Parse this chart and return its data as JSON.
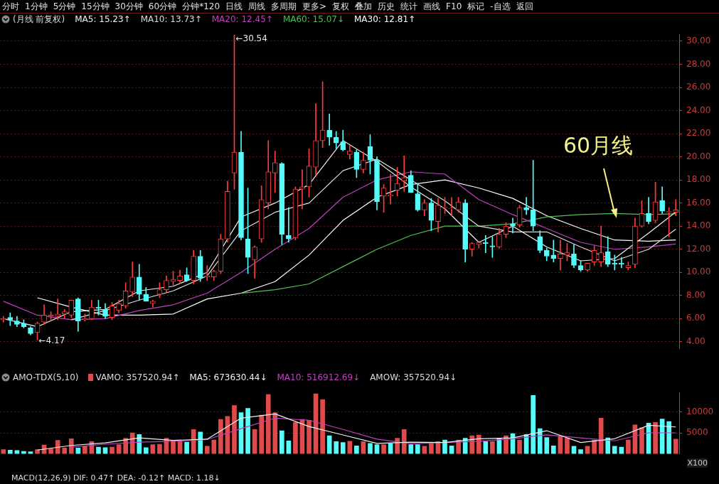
{
  "chart_data": [
    {
      "type": "other",
      "annotations": [
        "分时",
        "1分钟",
        "5分钟",
        "15分钟",
        "30分钟",
        "60分钟",
        "分钟*120",
        "日线",
        "周线",
        "多周期",
        "更多>",
        "复权",
        "叠加",
        "历史",
        "统计",
        "画线",
        "F10",
        "标记",
        "-自选",
        "返回"
      ]
    },
    {
      "type": "candlestick",
      "title": "(月线 前复权)",
      "categories": [
        null,
        null,
        null,
        null,
        null,
        null,
        null,
        null,
        null,
        null,
        null,
        null,
        null,
        null,
        null,
        null,
        null,
        null,
        null,
        null,
        null,
        null,
        null,
        null,
        null,
        null,
        null,
        null,
        null,
        null,
        null,
        null,
        null,
        null,
        null,
        null,
        null,
        null,
        null,
        null,
        null,
        null,
        null,
        null,
        null,
        null,
        null,
        null,
        null,
        null,
        null,
        null,
        null,
        null,
        null,
        null,
        null,
        null,
        null,
        null,
        null,
        null,
        null,
        null,
        null,
        null,
        null,
        null,
        null,
        null,
        null,
        null,
        null,
        null,
        null,
        null,
        null,
        null,
        null,
        null,
        null,
        null,
        null,
        null,
        null,
        null,
        null,
        null,
        null,
        null,
        null,
        null,
        null,
        null,
        null,
        null,
        null,
        null,
        null,
        null
      ],
      "ohlc": [
        [
          5.9,
          6.2,
          5.7,
          6.0
        ],
        [
          6.1,
          6.5,
          5.4,
          5.9
        ],
        [
          5.8,
          6.2,
          5.3,
          5.5
        ],
        [
          5.6,
          5.9,
          5.2,
          5.3
        ],
        [
          5.2,
          5.3,
          4.6,
          4.7
        ],
        [
          4.8,
          5.7,
          4.17,
          5.6
        ],
        [
          5.7,
          7.2,
          5.5,
          6.3
        ],
        [
          6.2,
          6.6,
          5.9,
          6.3
        ],
        [
          6.2,
          7.7,
          5.9,
          6.4
        ],
        [
          6.4,
          6.8,
          6.0,
          6.6
        ],
        [
          6.3,
          7.6,
          6.1,
          7.6
        ],
        [
          7.7,
          7.8,
          4.9,
          5.8
        ],
        [
          5.9,
          6.4,
          5.8,
          6.0
        ],
        [
          6.0,
          7.6,
          5.9,
          7.0
        ],
        [
          7.0,
          7.6,
          6.3,
          6.9
        ],
        [
          6.8,
          7.3,
          6.0,
          6.2
        ],
        [
          6.1,
          7.4,
          5.9,
          7.1
        ],
        [
          6.7,
          7.6,
          6.5,
          7.3
        ],
        [
          7.1,
          9.1,
          6.9,
          8.4
        ],
        [
          8.3,
          10.9,
          7.9,
          9.6
        ],
        [
          9.6,
          10.7,
          7.6,
          8.1
        ],
        [
          8.1,
          8.7,
          7.5,
          7.5
        ],
        [
          7.3,
          7.6,
          7.0,
          7.5
        ],
        [
          8.1,
          9.1,
          7.8,
          8.5
        ],
        [
          8.5,
          9.7,
          8.3,
          9.3
        ],
        [
          9.2,
          10.1,
          8.9,
          9.4
        ],
        [
          9.3,
          10.2,
          9.0,
          9.7
        ],
        [
          9.8,
          10.4,
          9.2,
          9.3
        ],
        [
          9.3,
          11.9,
          9.0,
          11.4
        ],
        [
          11.4,
          11.9,
          9.2,
          9.5
        ],
        [
          9.6,
          10.6,
          9.3,
          9.7
        ],
        [
          9.6,
          10.2,
          9.3,
          10.1
        ],
        [
          10.1,
          13.3,
          9.9,
          12.9
        ],
        [
          12.9,
          17.9,
          12.6,
          17.0
        ],
        [
          18.6,
          30.54,
          17.2,
          20.4
        ],
        [
          20.4,
          22.2,
          12.8,
          13.0
        ],
        [
          12.9,
          17.3,
          9.9,
          11.3
        ],
        [
          11.1,
          12.3,
          9.5,
          12.2
        ],
        [
          12.9,
          17.5,
          12.6,
          16.3
        ],
        [
          16.0,
          21.4,
          15.5,
          18.7
        ],
        [
          18.6,
          20.5,
          16.9,
          19.5
        ],
        [
          19.4,
          19.5,
          12.4,
          13.3
        ],
        [
          13.2,
          15.6,
          12.6,
          12.9
        ],
        [
          13.0,
          17.4,
          12.8,
          17.2
        ],
        [
          17.2,
          18.9,
          15.5,
          17.4
        ],
        [
          17.4,
          20.7,
          16.5,
          19.2
        ],
        [
          19.1,
          24.6,
          18.4,
          21.4
        ],
        [
          21.4,
          26.5,
          20.8,
          22.3
        ],
        [
          22.3,
          23.7,
          21.0,
          21.7
        ],
        [
          21.7,
          22.2,
          20.7,
          21.2
        ],
        [
          21.3,
          22.3,
          20.5,
          20.6
        ],
        [
          20.2,
          21.0,
          19.8,
          20.5
        ],
        [
          20.4,
          20.6,
          18.2,
          18.9
        ],
        [
          18.9,
          20.4,
          18.6,
          19.7
        ],
        [
          20.9,
          21.9,
          18.5,
          19.7
        ],
        [
          19.7,
          20.0,
          15.4,
          16.1
        ],
        [
          16.6,
          17.6,
          15.2,
          17.3
        ],
        [
          16.6,
          18.5,
          15.9,
          16.7
        ],
        [
          17.1,
          19.1,
          16.6,
          17.7
        ],
        [
          17.9,
          20.1,
          17.0,
          18.2
        ],
        [
          18.4,
          18.8,
          16.9,
          16.9
        ],
        [
          16.8,
          17.7,
          15.3,
          15.4
        ],
        [
          15.4,
          16.3,
          14.9,
          16.0
        ],
        [
          16.0,
          16.4,
          13.6,
          14.5
        ],
        [
          14.4,
          16.4,
          13.5,
          15.8
        ],
        [
          15.6,
          16.5,
          15.1,
          15.6
        ],
        [
          15.5,
          16.5,
          14.9,
          15.5
        ],
        [
          15.4,
          16.5,
          15.2,
          16.1
        ],
        [
          16.0,
          16.3,
          10.9,
          12.0
        ],
        [
          12.0,
          12.6,
          11.4,
          12.5
        ],
        [
          12.4,
          12.7,
          12.1,
          12.6
        ],
        [
          12.6,
          13.2,
          11.7,
          12.5
        ],
        [
          12.3,
          13.1,
          11.3,
          12.2
        ],
        [
          12.2,
          13.8,
          12.1,
          13.3
        ],
        [
          13.3,
          14.3,
          13.0,
          14.0
        ],
        [
          14.2,
          14.7,
          13.4,
          14.0
        ],
        [
          14.1,
          15.8,
          13.9,
          15.6
        ],
        [
          15.6,
          16.5,
          15.0,
          15.4
        ],
        [
          15.4,
          19.7,
          13.6,
          14.0
        ],
        [
          13.1,
          13.6,
          11.7,
          11.9
        ],
        [
          11.9,
          12.1,
          11.0,
          11.4
        ],
        [
          11.5,
          12.8,
          10.9,
          11.2
        ],
        [
          11.2,
          12.8,
          10.2,
          11.6
        ],
        [
          11.5,
          12.5,
          11.0,
          11.7
        ],
        [
          11.6,
          12.4,
          10.4,
          10.6
        ],
        [
          10.6,
          11.0,
          10.1,
          10.2
        ],
        [
          10.2,
          10.8,
          10.1,
          10.8
        ],
        [
          10.9,
          12.3,
          10.6,
          11.9
        ],
        [
          10.9,
          14.0,
          10.5,
          11.7
        ],
        [
          11.8,
          13.1,
          10.5,
          10.7
        ],
        [
          10.8,
          11.5,
          10.2,
          10.7
        ],
        [
          10.8,
          11.3,
          10.4,
          10.7
        ],
        [
          10.4,
          10.9,
          10.2,
          10.6
        ],
        [
          10.7,
          14.7,
          10.4,
          14.0
        ],
        [
          14.0,
          16.2,
          13.9,
          15.1
        ],
        [
          15.1,
          16.5,
          14.2,
          14.4
        ],
        [
          14.5,
          17.8,
          14.3,
          16.1
        ],
        [
          16.2,
          17.4,
          15.1,
          15.3
        ],
        [
          15.2,
          15.6,
          13.1,
          15.2
        ],
        [
          15.2,
          16.3,
          14.9,
          15.4
        ]
      ],
      "series": [
        {
          "type": "line",
          "name": "MA5: 15.23↑",
          "color": "#f0f0f0",
          "values": [
            6.0,
            null,
            null,
            null,
            null,
            5.3,
            null,
            null,
            null,
            null,
            6.6,
            null,
            null,
            null,
            null,
            6.8,
            null,
            null,
            null,
            null,
            8.4,
            null,
            null,
            null,
            null,
            8.8,
            null,
            null,
            null,
            null,
            10.0,
            null,
            null,
            null,
            null,
            14.8,
            null,
            null,
            null,
            null,
            16.0,
            null,
            null,
            null,
            null,
            17.6,
            null,
            null,
            null,
            null,
            21.4,
            null,
            null,
            null,
            null,
            19.6,
            null,
            null,
            null,
            null,
            17.4,
            null,
            null,
            null,
            null,
            15.5,
            null,
            null,
            null,
            null,
            12.6,
            null,
            null,
            null,
            null,
            14.0,
            null,
            null,
            null,
            null,
            12.2,
            null,
            null,
            null,
            null,
            11.0,
            null,
            null,
            null,
            null,
            11.2,
            null,
            null,
            null,
            null,
            13.4,
            null,
            null,
            null,
            15.23
          ]
        },
        {
          "type": "line",
          "name": "MA10: 13.73↑",
          "color": "#dcdcdc",
          "values": [
            null,
            null,
            null,
            null,
            null,
            null,
            null,
            null,
            null,
            null,
            5.9,
            null,
            null,
            null,
            null,
            6.7,
            null,
            null,
            null,
            null,
            7.6,
            null,
            null,
            null,
            null,
            8.4,
            null,
            null,
            null,
            null,
            9.7,
            null,
            null,
            null,
            null,
            13.6,
            null,
            null,
            null,
            null,
            15.2,
            null,
            null,
            null,
            null,
            16.0,
            null,
            null,
            null,
            null,
            18.8,
            null,
            null,
            null,
            null,
            19.8,
            null,
            null,
            null,
            null,
            18.0,
            null,
            null,
            null,
            null,
            16.2,
            null,
            null,
            null,
            null,
            14.0,
            null,
            null,
            null,
            null,
            13.5,
            null,
            null,
            null,
            null,
            13.5,
            null,
            null,
            null,
            null,
            12.2,
            null,
            null,
            null,
            null,
            11.0,
            null,
            null,
            null,
            null,
            12.0,
            null,
            null,
            null,
            13.73
          ]
        },
        {
          "type": "line",
          "name": "MA20: 12.45↑",
          "color": "#c040c0",
          "values": [
            7.5,
            null,
            null,
            null,
            null,
            6.3,
            null,
            null,
            null,
            null,
            5.9,
            null,
            null,
            null,
            null,
            6.0,
            null,
            null,
            null,
            null,
            6.7,
            null,
            null,
            null,
            null,
            7.2,
            null,
            null,
            null,
            null,
            8.2,
            null,
            null,
            null,
            null,
            10.0,
            null,
            null,
            null,
            null,
            12.0,
            null,
            null,
            null,
            null,
            13.8,
            null,
            null,
            null,
            null,
            16.5,
            null,
            null,
            null,
            null,
            18.0,
            null,
            null,
            null,
            null,
            18.7,
            null,
            null,
            null,
            null,
            18.5,
            null,
            null,
            null,
            null,
            16.3,
            null,
            null,
            null,
            null,
            15.0,
            null,
            null,
            null,
            null,
            13.8,
            null,
            null,
            null,
            null,
            12.6,
            null,
            null,
            null,
            null,
            12.0,
            null,
            null,
            null,
            null,
            12.2,
            null,
            null,
            null,
            12.45
          ]
        },
        {
          "type": "line",
          "name": "MA60: 15.07↓",
          "color": "#50c050",
          "values": [
            null,
            null,
            null,
            null,
            null,
            null,
            null,
            null,
            null,
            null,
            null,
            null,
            null,
            null,
            null,
            null,
            null,
            null,
            null,
            null,
            null,
            null,
            null,
            null,
            null,
            null,
            null,
            null,
            null,
            null,
            null,
            null,
            null,
            null,
            null,
            8.2,
            null,
            null,
            null,
            null,
            8.5,
            null,
            null,
            null,
            null,
            9.0,
            null,
            null,
            null,
            null,
            10.5,
            null,
            null,
            null,
            null,
            12.0,
            null,
            null,
            null,
            null,
            13.2,
            null,
            null,
            null,
            null,
            14.0,
            null,
            null,
            null,
            null,
            14.0,
            null,
            null,
            null,
            null,
            14.2,
            null,
            null,
            null,
            null,
            14.8,
            null,
            null,
            null,
            null,
            15.0,
            null,
            null,
            null,
            null,
            15.1,
            null,
            null,
            null,
            null,
            15.0,
            null,
            null,
            null,
            15.07
          ]
        },
        {
          "type": "line",
          "name": "MA30: 12.81↑",
          "color": "#ffffff",
          "values": [
            null,
            null,
            null,
            null,
            null,
            7.8,
            null,
            null,
            null,
            null,
            7.0,
            null,
            null,
            null,
            null,
            6.3,
            null,
            null,
            null,
            null,
            6.3,
            null,
            null,
            null,
            null,
            6.4,
            null,
            null,
            null,
            null,
            7.7,
            null,
            null,
            null,
            null,
            8.2,
            null,
            null,
            null,
            null,
            9.2,
            null,
            null,
            null,
            null,
            11.5,
            null,
            null,
            null,
            null,
            14.5,
            null,
            null,
            null,
            null,
            16.5,
            null,
            null,
            null,
            null,
            17.6,
            null,
            null,
            null,
            null,
            18.0,
            null,
            null,
            null,
            null,
            17.3,
            null,
            null,
            null,
            null,
            16.4,
            null,
            null,
            null,
            null,
            14.9,
            null,
            null,
            null,
            null,
            13.8,
            null,
            null,
            null,
            null,
            12.8,
            null,
            null,
            null,
            null,
            12.7,
            null,
            null,
            null,
            12.81
          ]
        }
      ],
      "ylim": [
        3.4,
        30.6
      ],
      "yticks": [
        {
          "value": 4,
          "label": "4.00"
        },
        {
          "value": 6,
          "label": "6.00"
        },
        {
          "value": 8,
          "label": "8.00"
        },
        {
          "value": 10,
          "label": "10.00"
        },
        {
          "value": 12,
          "label": "12.00"
        },
        {
          "value": 14,
          "label": "14.00"
        },
        {
          "value": 16,
          "label": "16.00"
        },
        {
          "value": 18,
          "label": "18.00"
        },
        {
          "value": 20,
          "label": "20.00"
        },
        {
          "value": 22,
          "label": "22.00"
        },
        {
          "value": 24,
          "label": "24.00"
        },
        {
          "value": 26,
          "label": "26.00"
        },
        {
          "value": 28,
          "label": "28.00"
        },
        {
          "value": 30,
          "label": "30.00"
        }
      ],
      "grid": "y",
      "legend": "top",
      "annotations": [
        "←30.54",
        "←4.17",
        "60月线"
      ]
    },
    {
      "type": "bar",
      "title": "AMO-TDX(5,10)",
      "ylabel": "X100",
      "categories": [
        null,
        null,
        null,
        null,
        null,
        null,
        null,
        null,
        null,
        null,
        null,
        null,
        null,
        null,
        null,
        null,
        null,
        null,
        null,
        null,
        null,
        null,
        null,
        null,
        null,
        null,
        null,
        null,
        null,
        null,
        null,
        null,
        null,
        null,
        null,
        null,
        null,
        null,
        null,
        null,
        null,
        null,
        null,
        null,
        null,
        null,
        null,
        null,
        null,
        null,
        null,
        null,
        null,
        null,
        null,
        null,
        null,
        null,
        null,
        null,
        null,
        null,
        null,
        null,
        null,
        null,
        null,
        null,
        null,
        null,
        null,
        null,
        null,
        null,
        null,
        null,
        null,
        null,
        null,
        null,
        null,
        null,
        null,
        null,
        null,
        null,
        null,
        null,
        null,
        null,
        null,
        null,
        null,
        null,
        null,
        null,
        null,
        null,
        null,
        null
      ],
      "series": [
        {
          "type": "bar",
          "name": "VAMO: 357520.94↑",
          "values": [
            1000,
            900,
            800,
            600,
            500,
            1000,
            2100,
            1200,
            3200,
            1400,
            3600,
            1400,
            1800,
            2900,
            1600,
            1500,
            1600,
            2200,
            3700,
            5000,
            4600,
            1500,
            2200,
            2300,
            3700,
            3200,
            3100,
            2800,
            5800,
            5200,
            1800,
            3300,
            8200,
            8900,
            11500,
            9800,
            10800,
            5800,
            9200,
            14100,
            9800,
            5500,
            3100,
            7500,
            8200,
            8000,
            14300,
            12900,
            4300,
            2900,
            2700,
            3000,
            1900,
            2900,
            2500,
            2200,
            2200,
            2400,
            3700,
            5800,
            2200,
            2200,
            1800,
            2500,
            2900,
            3300,
            1900,
            3300,
            3700,
            4300,
            4500,
            2900,
            2900,
            3700,
            4300,
            4800,
            3300,
            4600,
            13900,
            6000,
            3900,
            1900,
            4100,
            3700,
            1800,
            1000,
            1800,
            3300,
            8500,
            3800,
            1800,
            1600,
            3300,
            6900,
            6200,
            7300,
            7500,
            8300,
            7700,
            3500
          ],
          "colors": [
            "#e04a4a",
            "#54fcfc",
            "#54fcfc",
            "#54fcfc",
            "#54fcfc",
            "#e04a4a",
            "#e04a4a",
            "#e04a4a",
            "#e04a4a",
            "#e04a4a",
            "#e04a4a",
            "#54fcfc",
            "#e04a4a",
            "#e04a4a",
            "#54fcfc",
            "#54fcfc",
            "#e04a4a",
            "#e04a4a",
            "#e04a4a",
            "#e04a4a",
            "#54fcfc",
            "#54fcfc",
            "#e04a4a",
            "#e04a4a",
            "#e04a4a",
            "#e04a4a",
            "#e04a4a",
            "#54fcfc",
            "#e04a4a",
            "#54fcfc",
            "#e04a4a",
            "#e04a4a",
            "#e04a4a",
            "#e04a4a",
            "#e04a4a",
            "#54fcfc",
            "#54fcfc",
            "#e04a4a",
            "#e04a4a",
            "#e04a4a",
            "#e04a4a",
            "#54fcfc",
            "#54fcfc",
            "#e04a4a",
            "#e04a4a",
            "#e04a4a",
            "#e04a4a",
            "#e04a4a",
            "#54fcfc",
            "#54fcfc",
            "#54fcfc",
            "#e04a4a",
            "#54fcfc",
            "#e04a4a",
            "#54fcfc",
            "#54fcfc",
            "#e04a4a",
            "#54fcfc",
            "#e04a4a",
            "#e04a4a",
            "#54fcfc",
            "#54fcfc",
            "#e04a4a",
            "#e04a4a",
            "#e04a4a",
            "#54fcfc",
            "#54fcfc",
            "#e04a4a",
            "#54fcfc",
            "#e04a4a",
            "#e04a4a",
            "#54fcfc",
            "#e04a4a",
            "#54fcfc",
            "#e04a4a",
            "#54fcfc",
            "#e04a4a",
            "#54fcfc",
            "#54fcfc",
            "#54fcfc",
            "#54fcfc",
            "#54fcfc",
            "#e04a4a",
            "#e04a4a",
            "#54fcfc",
            "#54fcfc",
            "#e04a4a",
            "#e04a4a",
            "#e04a4a",
            "#54fcfc",
            "#54fcfc",
            "#54fcfc",
            "#e04a4a",
            "#e04a4a",
            "#e04a4a",
            "#54fcfc",
            "#e04a4a",
            "#54fcfc",
            "#54fcfc",
            "#e04a4a"
          ]
        },
        {
          "type": "line",
          "name": "MA5: 673630.44↓",
          "color": "#f0f0f0",
          "values": [
            null,
            null,
            null,
            null,
            null,
            900,
            null,
            null,
            null,
            null,
            2000,
            null,
            null,
            null,
            null,
            2600,
            null,
            null,
            null,
            null,
            3800,
            null,
            null,
            null,
            null,
            3200,
            null,
            null,
            null,
            null,
            3500,
            null,
            null,
            null,
            null,
            8500,
            null,
            null,
            null,
            null,
            9500,
            null,
            null,
            null,
            null,
            6500,
            null,
            null,
            null,
            null,
            4500,
            null,
            null,
            null,
            null,
            2500,
            null,
            null,
            null,
            null,
            2800,
            null,
            null,
            null,
            null,
            2700,
            null,
            null,
            null,
            null,
            3600,
            null,
            null,
            null,
            null,
            3800,
            null,
            null,
            null,
            null,
            5500,
            null,
            null,
            null,
            null,
            2700,
            null,
            null,
            null,
            null,
            3600,
            null,
            null,
            null,
            null,
            6800,
            null,
            null,
            null,
            6400
          ]
        },
        {
          "type": "line",
          "name": "MA10: 516912.69↓",
          "color": "#c040c0",
          "values": [
            null,
            null,
            null,
            null,
            null,
            null,
            null,
            null,
            null,
            null,
            1600,
            null,
            null,
            null,
            null,
            2300,
            null,
            null,
            null,
            null,
            2800,
            null,
            null,
            null,
            null,
            3000,
            null,
            null,
            null,
            null,
            3400,
            null,
            null,
            null,
            null,
            6000,
            null,
            null,
            null,
            null,
            8500,
            null,
            null,
            null,
            null,
            8000,
            null,
            null,
            null,
            null,
            5800,
            null,
            null,
            null,
            null,
            3500,
            null,
            null,
            null,
            null,
            2400,
            null,
            null,
            null,
            null,
            2700,
            null,
            null,
            null,
            null,
            3000,
            null,
            null,
            null,
            null,
            3600,
            null,
            null,
            null,
            null,
            4500,
            null,
            null,
            null,
            null,
            3800,
            null,
            null,
            null,
            null,
            3100,
            null,
            null,
            null,
            null,
            5000,
            null,
            null,
            null,
            5000
          ]
        }
      ],
      "ylim": [
        0,
        14600
      ],
      "yticks": [
        5000,
        10000
      ],
      "grid": "y",
      "legend": "top",
      "annotations": [
        "AMOW: 357520.94↓",
        "MACD(12,26,9) DIF: 0.47↑ DEA: -0.12↑ MACD: 1.18↓"
      ]
    }
  ]
}
